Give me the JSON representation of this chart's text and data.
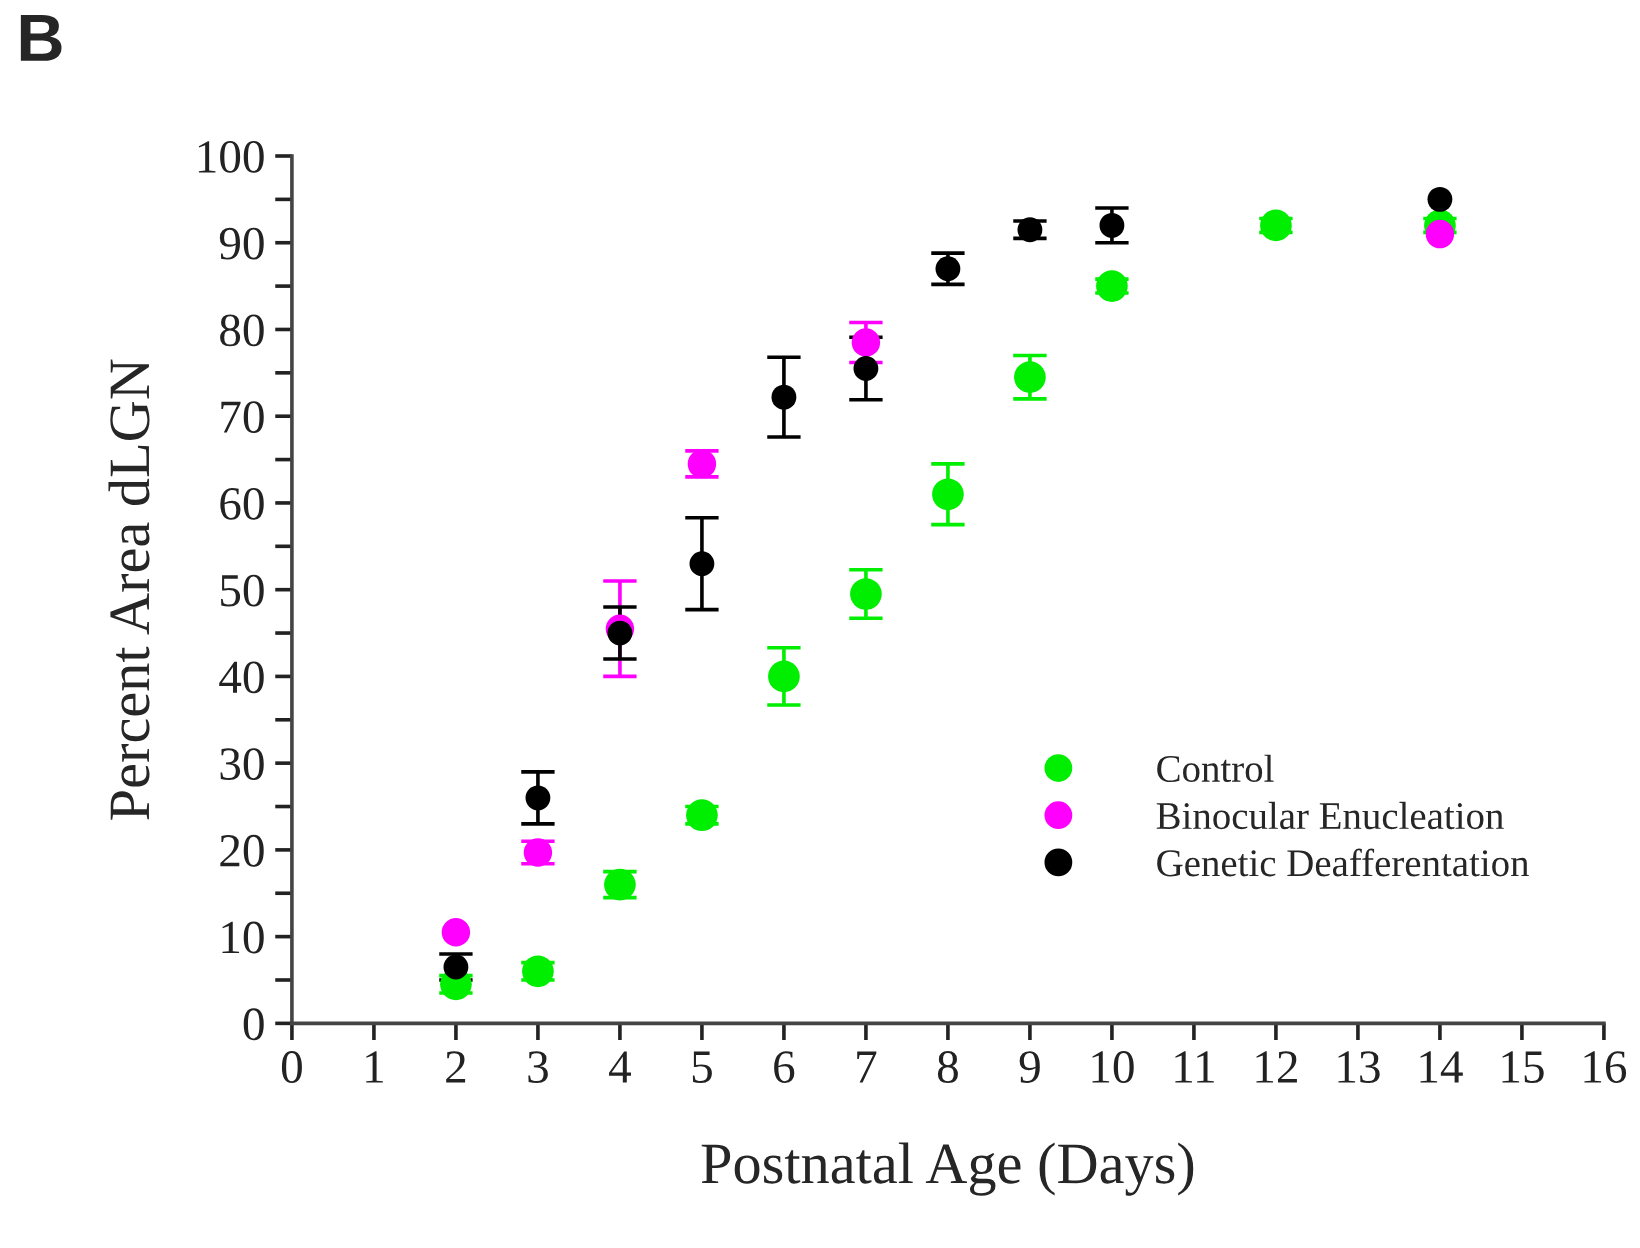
{
  "chart_data": {
    "type": "scatter",
    "xlabel": "Postnatal Age (Days)",
    "ylabel": "Percent Area dLGN",
    "annotations": [
      "B"
    ],
    "xlim": [
      0,
      16
    ],
    "xticks": [
      0,
      1,
      2,
      3,
      4,
      5,
      6,
      7,
      8,
      9,
      10,
      11,
      12,
      13,
      14,
      15,
      16
    ],
    "ylim": [
      0,
      100
    ],
    "yticks": [
      0,
      {
        "value": 5,
        "label": null
      },
      10,
      {
        "value": 15,
        "label": null
      },
      20,
      {
        "value": 25,
        "label": null
      },
      30,
      {
        "value": 35,
        "label": null
      },
      40,
      {
        "value": 45,
        "label": null
      },
      50,
      {
        "value": 55,
        "label": null
      },
      60,
      {
        "value": 65,
        "label": null
      },
      70,
      {
        "value": 75,
        "label": null
      },
      80,
      {
        "value": 85,
        "label": null
      },
      90,
      {
        "value": 95,
        "label": null
      },
      100
    ],
    "marker": "circle",
    "grid": false,
    "legend": "bottom right",
    "series": [
      {
        "name": "Control",
        "color": "#00ee00",
        "x": [
          2,
          3,
          4,
          5,
          6,
          7,
          8,
          9,
          10,
          12,
          14
        ],
        "values": [
          4.5,
          6,
          16,
          24,
          40,
          49.5,
          61,
          74.5,
          85,
          92,
          92
        ],
        "errors": [
          1,
          1,
          1.5,
          1,
          3.3,
          2.8,
          3.5,
          2.5,
          0.8,
          0.8,
          0.8
        ]
      },
      {
        "name": "Binocular Enucleation",
        "color": "#ff00ff",
        "x": [
          2,
          3,
          4,
          5,
          7,
          14
        ],
        "values": [
          10.5,
          19.7,
          45.5,
          64.5,
          78.5,
          91
        ],
        "errors": [
          null,
          1.3,
          5.5,
          1.5,
          2.3,
          null
        ]
      },
      {
        "name": "Genetic Deafferentation",
        "color": "#000000",
        "x": [
          2,
          3,
          4,
          5,
          6,
          7,
          8,
          9,
          10,
          14
        ],
        "values": [
          6.5,
          26,
          45,
          53,
          72.2,
          75.5,
          87,
          91.5,
          92,
          95
        ],
        "errors": [
          1.5,
          3,
          3,
          5.3,
          4.6,
          3.6,
          1.8,
          1,
          2,
          null
        ]
      }
    ]
  }
}
